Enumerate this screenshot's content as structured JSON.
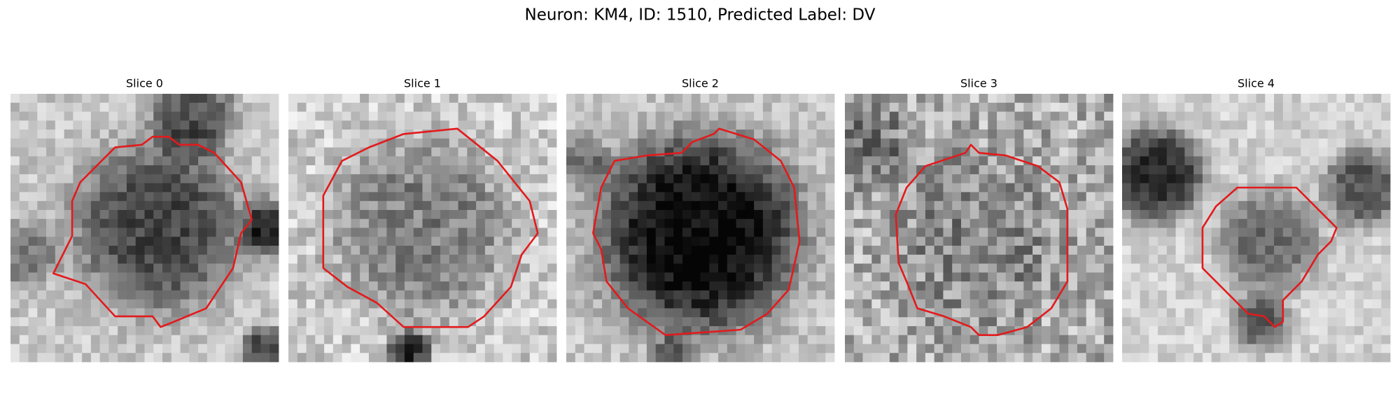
{
  "title": "Neuron: KM4, ID: 1510, Predicted Label: DV",
  "panels": [
    {
      "title": "Slice 0"
    },
    {
      "title": "Slice 1"
    },
    {
      "title": "Slice 2"
    },
    {
      "title": "Slice 3"
    },
    {
      "title": "Slice 4"
    }
  ]
}
